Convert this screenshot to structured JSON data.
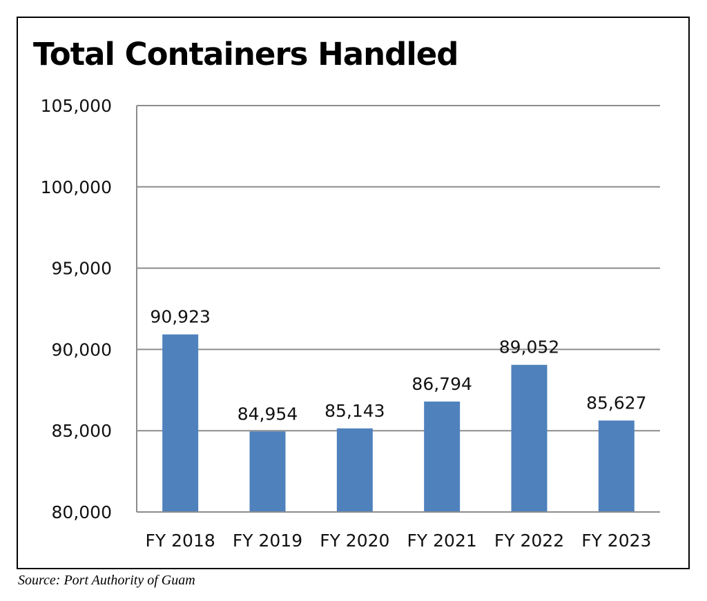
{
  "chart_data": {
    "type": "bar",
    "title": "Total Containers Handled",
    "categories": [
      "FY 2018",
      "FY 2019",
      "FY 2020",
      "FY 2021",
      "FY 2022",
      "FY 2023"
    ],
    "values": [
      90923,
      84954,
      85143,
      86794,
      89052,
      85627
    ],
    "value_labels": [
      "90,923",
      "84,954",
      "85,143",
      "86,794",
      "89,052",
      "85,627"
    ],
    "ylim": [
      80000,
      105000
    ],
    "yticks": [
      80000,
      85000,
      90000,
      95000,
      100000,
      105000
    ],
    "ytick_labels": [
      "80,000",
      "85,000",
      "90,000",
      "95,000",
      "100,000",
      "105,000"
    ],
    "xlabel": "",
    "ylabel": "",
    "grid": true,
    "legend": "none",
    "bar_color": "#4F81BD"
  },
  "source_note": "Source: Port Authority of Guam"
}
